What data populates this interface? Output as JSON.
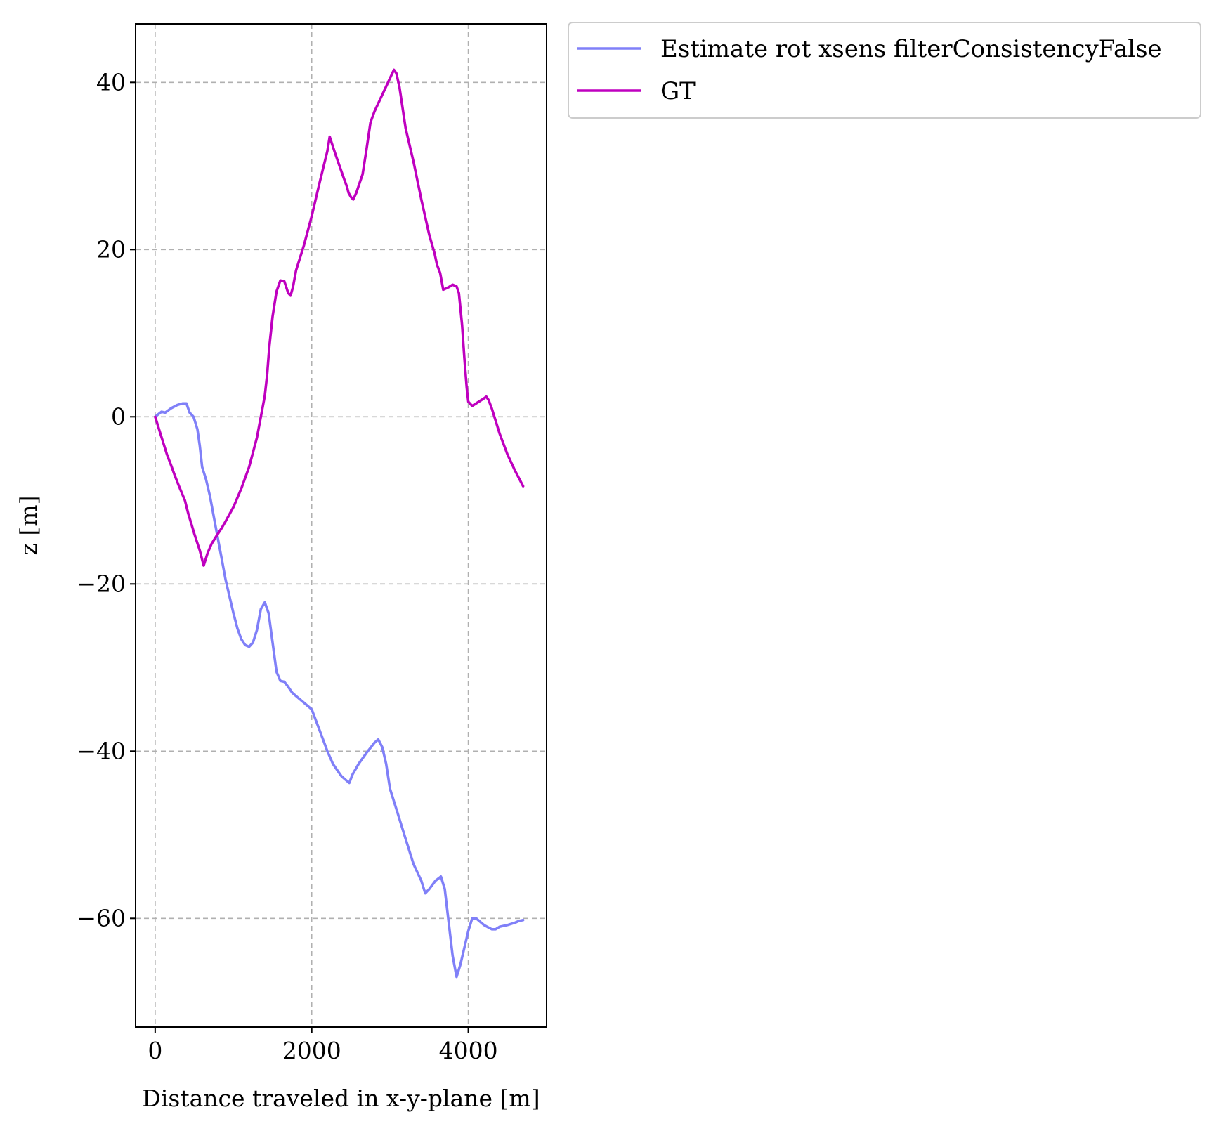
{
  "chart_data": {
    "type": "line",
    "xlabel": "Distance traveled in x-y-plane [m]",
    "ylabel": "z [m]",
    "xlim": [
      -250,
      5000
    ],
    "ylim": [
      -73,
      47
    ],
    "xticks": [
      0,
      2000,
      4000
    ],
    "yticks": [
      -60,
      -40,
      -20,
      0,
      20,
      40
    ],
    "xtick_labels": [
      "0",
      "2000",
      "4000"
    ],
    "ytick_labels": [
      "−60",
      "−40",
      "−20",
      "0",
      "20",
      "40"
    ],
    "grid": true,
    "legend_placement": "outside-top-right",
    "series": [
      {
        "name": "Estimate rot xsens filterConsistencyFalse",
        "color": "#8080f8",
        "points": [
          [
            0,
            0
          ],
          [
            40,
            0.3
          ],
          [
            80,
            0.6
          ],
          [
            130,
            0.5
          ],
          [
            200,
            1.0
          ],
          [
            280,
            1.4
          ],
          [
            350,
            1.6
          ],
          [
            400,
            1.6
          ],
          [
            440,
            0.5
          ],
          [
            490,
            0
          ],
          [
            540,
            -1.5
          ],
          [
            570,
            -3.5
          ],
          [
            600,
            -6
          ],
          [
            650,
            -7.5
          ],
          [
            700,
            -9.5
          ],
          [
            750,
            -12
          ],
          [
            800,
            -14.5
          ],
          [
            850,
            -17
          ],
          [
            900,
            -19.5
          ],
          [
            950,
            -21.5
          ],
          [
            1000,
            -23.5
          ],
          [
            1050,
            -25.3
          ],
          [
            1100,
            -26.6
          ],
          [
            1150,
            -27.3
          ],
          [
            1200,
            -27.5
          ],
          [
            1250,
            -27.0
          ],
          [
            1300,
            -25.5
          ],
          [
            1350,
            -23.0
          ],
          [
            1400,
            -22.2
          ],
          [
            1450,
            -23.5
          ],
          [
            1500,
            -27.0
          ],
          [
            1550,
            -30.5
          ],
          [
            1600,
            -31.6
          ],
          [
            1650,
            -31.7
          ],
          [
            1700,
            -32.3
          ],
          [
            1750,
            -33.0
          ],
          [
            1800,
            -33.4
          ],
          [
            1900,
            -34.2
          ],
          [
            2000,
            -35
          ],
          [
            2100,
            -37.5
          ],
          [
            2200,
            -40.0
          ],
          [
            2270,
            -41.5
          ],
          [
            2320,
            -42.2
          ],
          [
            2380,
            -43.0
          ],
          [
            2430,
            -43.4
          ],
          [
            2480,
            -43.8
          ],
          [
            2520,
            -42.8
          ],
          [
            2600,
            -41.5
          ],
          [
            2700,
            -40.2
          ],
          [
            2800,
            -39.0
          ],
          [
            2850,
            -38.6
          ],
          [
            2900,
            -39.5
          ],
          [
            2950,
            -41.5
          ],
          [
            3000,
            -44.5
          ],
          [
            3100,
            -47.5
          ],
          [
            3200,
            -50.5
          ],
          [
            3300,
            -53.5
          ],
          [
            3400,
            -55.5
          ],
          [
            3450,
            -57.0
          ],
          [
            3500,
            -56.5
          ],
          [
            3580,
            -55.5
          ],
          [
            3650,
            -55.0
          ],
          [
            3700,
            -56.5
          ],
          [
            3750,
            -60.5
          ],
          [
            3800,
            -64.5
          ],
          [
            3850,
            -67.0
          ],
          [
            3900,
            -65.5
          ],
          [
            3950,
            -63.5
          ],
          [
            4000,
            -61.5
          ],
          [
            4050,
            -60.0
          ],
          [
            4100,
            -60.0
          ],
          [
            4200,
            -60.8
          ],
          [
            4300,
            -61.3
          ],
          [
            4350,
            -61.3
          ],
          [
            4400,
            -61.0
          ],
          [
            4500,
            -60.8
          ],
          [
            4600,
            -60.5
          ],
          [
            4650,
            -60.3
          ],
          [
            4700,
            -60.2
          ]
        ]
      },
      {
        "name": "GT",
        "color": "#bf00bf",
        "points": [
          [
            0,
            0
          ],
          [
            50,
            -1.5
          ],
          [
            100,
            -3
          ],
          [
            150,
            -4.5
          ],
          [
            200,
            -5.7
          ],
          [
            250,
            -7
          ],
          [
            300,
            -8.2
          ],
          [
            380,
            -10
          ],
          [
            420,
            -11.5
          ],
          [
            500,
            -14
          ],
          [
            570,
            -16
          ],
          [
            620,
            -17.8
          ],
          [
            670,
            -16.3
          ],
          [
            720,
            -15.2
          ],
          [
            780,
            -14.3
          ],
          [
            850,
            -13.3
          ],
          [
            900,
            -12.5
          ],
          [
            1000,
            -10.8
          ],
          [
            1100,
            -8.6
          ],
          [
            1200,
            -6
          ],
          [
            1300,
            -2.5
          ],
          [
            1350,
            0
          ],
          [
            1400,
            2.5
          ],
          [
            1430,
            5
          ],
          [
            1460,
            8.5
          ],
          [
            1500,
            12
          ],
          [
            1550,
            15
          ],
          [
            1600,
            16.3
          ],
          [
            1650,
            16.2
          ],
          [
            1700,
            14.8
          ],
          [
            1730,
            14.5
          ],
          [
            1760,
            15.5
          ],
          [
            1800,
            17.5
          ],
          [
            1900,
            20.5
          ],
          [
            2000,
            24
          ],
          [
            2100,
            28
          ],
          [
            2200,
            31.8
          ],
          [
            2230,
            33.5
          ],
          [
            2300,
            31.5
          ],
          [
            2400,
            28.8
          ],
          [
            2450,
            27.5
          ],
          [
            2470,
            26.8
          ],
          [
            2500,
            26.3
          ],
          [
            2530,
            26.0
          ],
          [
            2570,
            26.8
          ],
          [
            2620,
            28.2
          ],
          [
            2650,
            29
          ],
          [
            2700,
            32
          ],
          [
            2750,
            35.2
          ],
          [
            2800,
            36.5
          ],
          [
            2900,
            38.5
          ],
          [
            3000,
            40.5
          ],
          [
            3050,
            41.5
          ],
          [
            3080,
            41.1
          ],
          [
            3120,
            39.5
          ],
          [
            3200,
            34.5
          ],
          [
            3300,
            30.5
          ],
          [
            3400,
            26
          ],
          [
            3500,
            21.8
          ],
          [
            3570,
            19.5
          ],
          [
            3600,
            18.2
          ],
          [
            3640,
            17.2
          ],
          [
            3680,
            15.2
          ],
          [
            3750,
            15.5
          ],
          [
            3800,
            15.8
          ],
          [
            3850,
            15.6
          ],
          [
            3880,
            14.8
          ],
          [
            3920,
            11
          ],
          [
            3950,
            7
          ],
          [
            3980,
            3.5
          ],
          [
            4000,
            1.8
          ],
          [
            4050,
            1.3
          ],
          [
            4100,
            1.6
          ],
          [
            4150,
            1.9
          ],
          [
            4200,
            2.2
          ],
          [
            4230,
            2.4
          ],
          [
            4260,
            2
          ],
          [
            4300,
            1
          ],
          [
            4350,
            -0.5
          ],
          [
            4400,
            -2
          ],
          [
            4500,
            -4.5
          ],
          [
            4600,
            -6.5
          ],
          [
            4700,
            -8.3
          ]
        ]
      }
    ]
  }
}
